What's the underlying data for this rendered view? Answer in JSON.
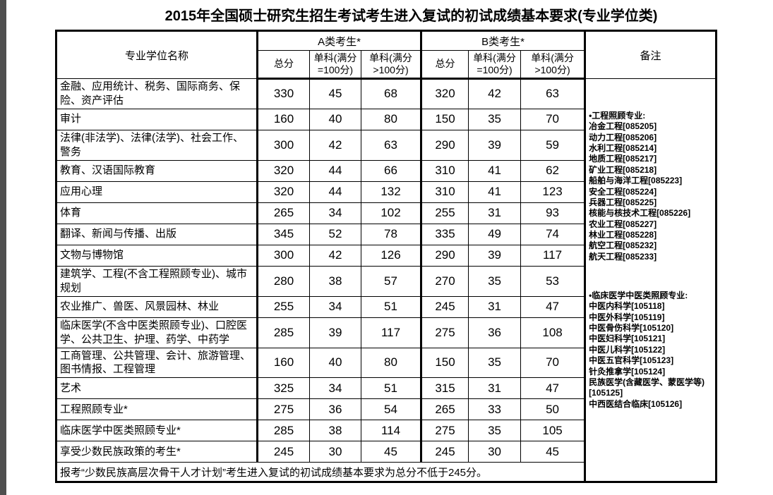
{
  "page": {
    "title": "2015年全国硕士研究生招生考试考生进入复试的初试成绩基本要求(专业学位类)"
  },
  "colors": {
    "page_bg": "#ffffff",
    "text": "#000000",
    "table_border": "#000000",
    "left_strip": "#4f4f4f"
  },
  "table": {
    "headers": {
      "name_col": "专业学位名称",
      "group_a": "A类考生*",
      "group_b": "B类考生*",
      "total": "总分",
      "single_eq100": "单科(满分=100分)",
      "single_gt100": "单科(满分>100分)",
      "remarks": "备注"
    },
    "rows": [
      {
        "name": "金融、应用统计、税务、国际商务、保险、资产评估",
        "values": [
          330,
          45,
          68,
          320,
          42,
          63
        ]
      },
      {
        "name": "审计",
        "values": [
          160,
          40,
          80,
          150,
          35,
          70
        ]
      },
      {
        "name": "法律(非法学)、法律(法学)、社会工作、警务",
        "values": [
          300,
          42,
          63,
          290,
          39,
          59
        ]
      },
      {
        "name": "教育、汉语国际教育",
        "values": [
          320,
          44,
          66,
          310,
          41,
          62
        ]
      },
      {
        "name": "应用心理",
        "values": [
          320,
          44,
          132,
          310,
          41,
          123
        ]
      },
      {
        "name": "体育",
        "values": [
          265,
          34,
          102,
          255,
          31,
          93
        ]
      },
      {
        "name": "翻译、新闻与传播、出版",
        "values": [
          345,
          52,
          78,
          335,
          49,
          74
        ]
      },
      {
        "name": "文物与博物馆",
        "values": [
          300,
          42,
          126,
          290,
          39,
          117
        ]
      },
      {
        "name": "建筑学、工程(不含工程照顾专业)、城市规划",
        "values": [
          280,
          38,
          57,
          270,
          35,
          53
        ]
      },
      {
        "name": "农业推广、兽医、风景园林、林业",
        "values": [
          255,
          34,
          51,
          245,
          31,
          47
        ]
      },
      {
        "name": "临床医学(不含中医类照顾专业)、口腔医学、公共卫生、护理、药学、中药学",
        "values": [
          285,
          39,
          117,
          275,
          36,
          108
        ]
      },
      {
        "name": "工商管理、公共管理、会计、旅游管理、图书情报、工程管理",
        "values": [
          160,
          40,
          80,
          150,
          35,
          70
        ]
      },
      {
        "name": "艺术",
        "values": [
          325,
          34,
          51,
          315,
          31,
          47
        ]
      },
      {
        "name": "工程照顾专业*",
        "values": [
          275,
          36,
          54,
          265,
          33,
          50
        ]
      },
      {
        "name": "临床医学中医类照顾专业*",
        "values": [
          285,
          38,
          114,
          275,
          35,
          105
        ]
      },
      {
        "name": "享受少数民族政策的考生*",
        "values": [
          245,
          30,
          45,
          245,
          30,
          45
        ]
      }
    ],
    "footer_note": "报考“少数民族高层次骨干人才计划”考生进入复试的初试成绩基本要求为总分不低于245分。"
  },
  "remarks": {
    "blocks": [
      {
        "title": "•工程照顾专业:",
        "items": [
          "冶金工程[085205]",
          "动力工程[085206]",
          "水利工程[085214]",
          "地质工程[085217]",
          "矿业工程[085218]",
          "船舶与海洋工程[085223]",
          "安全工程[085224]",
          "兵器工程[085225]",
          "核能与核技术工程[085226]",
          "农业工程[085227]",
          "林业工程[085228]",
          "航空工程[085232]",
          "航天工程[085233]"
        ]
      },
      {
        "title": "•临床医学中医类照顾专业:",
        "items": [
          "中医内科学[105118]",
          "中医外科学[105119]",
          "中医骨伤科学[105120]",
          "中医妇科学[105121]",
          "中医儿科学[105122]",
          "中医五官科学[105123]",
          "针灸推拿学[105124]",
          "民族医学(含藏医学、蒙医学等)[105125]",
          "中西医结合临床[105126]"
        ]
      }
    ]
  }
}
